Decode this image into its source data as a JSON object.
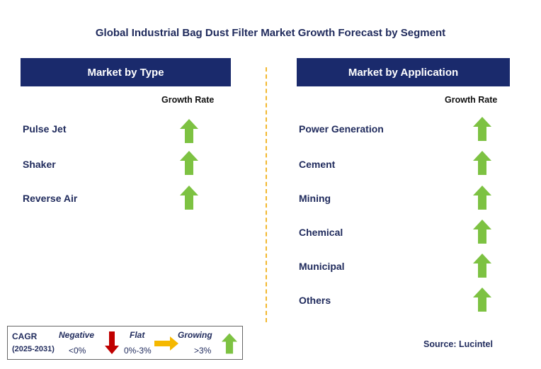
{
  "title": "Global Industrial Bag Dust Filter Market Growth Forecast by Segment",
  "left_panel": {
    "header": "Market by Type",
    "growth_label": "Growth Rate",
    "items": [
      {
        "label": "Pulse Jet",
        "trend": "growing"
      },
      {
        "label": "Shaker",
        "trend": "growing"
      },
      {
        "label": "Reverse Air",
        "trend": "growing"
      }
    ]
  },
  "right_panel": {
    "header": "Market by Application",
    "growth_label": "Growth Rate",
    "items": [
      {
        "label": "Power Generation",
        "trend": "growing"
      },
      {
        "label": "Cement",
        "trend": "growing"
      },
      {
        "label": "Mining",
        "trend": "growing"
      },
      {
        "label": "Chemical",
        "trend": "growing"
      },
      {
        "label": "Municipal",
        "trend": "growing"
      },
      {
        "label": "Others",
        "trend": "growing"
      }
    ]
  },
  "legend": {
    "cagr_label": "CAGR",
    "period": "(2025-2031)",
    "negative_label": "Negative",
    "negative_range": "<0%",
    "flat_label": "Flat",
    "flat_range": "0%-3%",
    "growing_label": "Growing",
    "growing_range": ">3%"
  },
  "source": "Source: Lucintel",
  "colors": {
    "header_bg": "#1a2a6c",
    "growing_arrow": "#7dc242",
    "negative_arrow": "#c00000",
    "flat_arrow": "#f5b800",
    "divider": "#f2b830"
  }
}
